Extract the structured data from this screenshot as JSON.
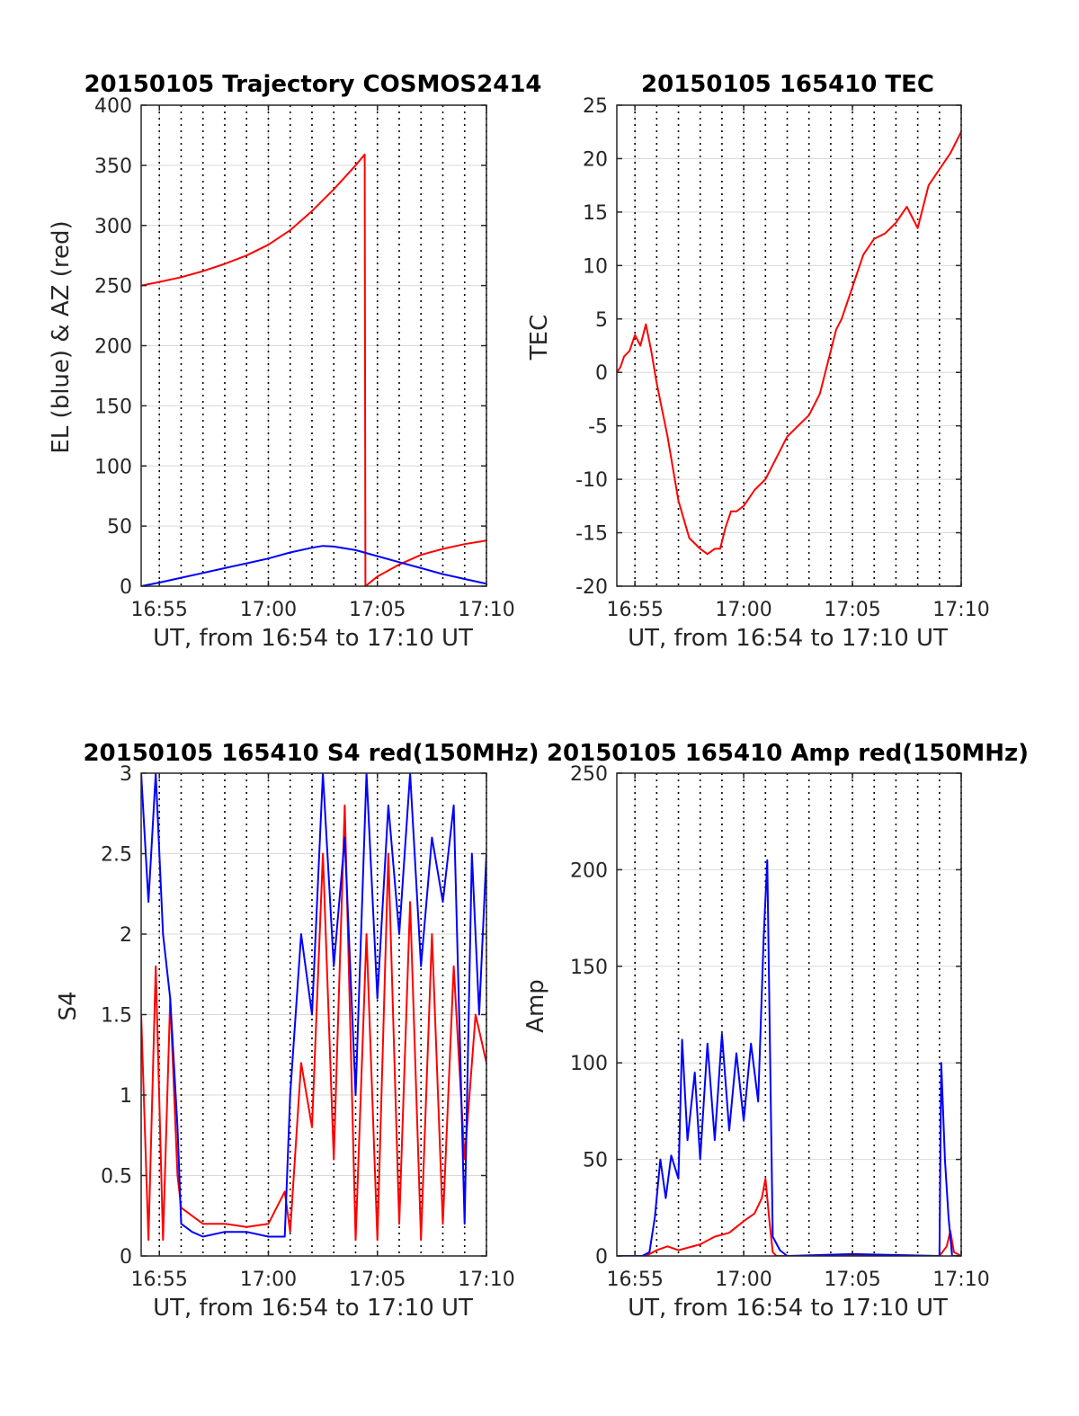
{
  "figure": {
    "date": "20150105",
    "time_window": "16:54 to 17:10 UT"
  },
  "colors": {
    "el": "#0000ff",
    "az": "#ff0000",
    "grid_major": "#d9d9d9",
    "grid_minute": "#000000",
    "axes": "#262626"
  },
  "chart_data": [
    {
      "type": "line",
      "title": "20150105 Trajectory COSMOS2414",
      "xlabel": "UT, from 16:54 to 17:10 UT",
      "ylabel": "EL (blue) & AZ (red)",
      "xlim": [
        "16:54:10",
        "17:10:00"
      ],
      "ylim": [
        0,
        400
      ],
      "yticks": [
        0,
        50,
        100,
        150,
        200,
        250,
        300,
        350,
        400
      ],
      "xticks": [
        "16:55",
        "17:00",
        "17:05",
        "17:10"
      ],
      "grid": true,
      "series": [
        {
          "color": "#ff0000",
          "x": [
            "16:54:10",
            "16:55:00",
            "16:56:00",
            "16:57:00",
            "16:58:00",
            "16:59:00",
            "17:00:00",
            "17:01:00",
            "17:02:00",
            "17:03:00",
            "17:04:00",
            "17:04:25",
            "17:04:27",
            "17:05:00",
            "17:06:00",
            "17:07:00",
            "17:08:00",
            "17:09:00",
            "17:10:00"
          ],
          "y": [
            250,
            253,
            257,
            262,
            268,
            275,
            284,
            296,
            312,
            330,
            350,
            359,
            0,
            8,
            18,
            26,
            31,
            35,
            38
          ]
        },
        {
          "color": "#0000ff",
          "x": [
            "16:54:10",
            "16:55:00",
            "16:56:00",
            "16:57:00",
            "16:58:00",
            "16:59:00",
            "17:00:00",
            "17:01:00",
            "17:02:00",
            "17:02:30",
            "17:03:00",
            "17:04:00",
            "17:05:00",
            "17:06:00",
            "17:07:00",
            "17:08:00",
            "17:09:00",
            "17:10:00"
          ],
          "y": [
            0,
            3,
            7,
            11,
            15,
            19,
            23,
            28,
            32,
            33.5,
            33,
            30,
            25,
            20,
            15,
            10,
            6,
            2
          ]
        }
      ]
    },
    {
      "type": "line",
      "title": "20150105 165410 TEC",
      "xlabel": "UT, from 16:54 to 17:10 UT",
      "ylabel": "TEC",
      "xlim": [
        "16:54:10",
        "17:10:00"
      ],
      "ylim": [
        -20,
        25
      ],
      "yticks": [
        -20,
        -15,
        -10,
        -5,
        0,
        5,
        10,
        15,
        20,
        25
      ],
      "xticks": [
        "16:55",
        "17:00",
        "17:05",
        "17:10"
      ],
      "grid": true,
      "series": [
        {
          "color": "#ff0000",
          "x": [
            "16:54:10",
            "16:54:20",
            "16:54:30",
            "16:54:45",
            "16:55:00",
            "16:55:15",
            "16:55:30",
            "16:55:45",
            "16:56:00",
            "16:56:30",
            "16:57:00",
            "16:57:30",
            "16:58:00",
            "16:58:20",
            "16:58:40",
            "16:58:55",
            "16:59:10",
            "16:59:25",
            "16:59:40",
            "17:00:00",
            "17:00:30",
            "17:01:00",
            "17:01:30",
            "17:02:00",
            "17:02:30",
            "17:03:00",
            "17:03:30",
            "17:04:00",
            "17:04:15",
            "17:04:30",
            "17:05:00",
            "17:05:30",
            "17:06:00",
            "17:06:30",
            "17:07:00",
            "17:07:30",
            "17:08:00",
            "17:08:30",
            "17:09:00",
            "17:09:30",
            "17:10:00"
          ],
          "y": [
            0,
            0.5,
            1.5,
            2,
            3.5,
            2.5,
            4.5,
            2,
            -1,
            -6,
            -12,
            -15.5,
            -16.5,
            -17,
            -16.5,
            -16.5,
            -14.5,
            -13,
            -13,
            -12.5,
            -11,
            -10,
            -8,
            -6,
            -5,
            -4,
            -2,
            2,
            4,
            5,
            8,
            11,
            12.5,
            13,
            14,
            15.5,
            13.5,
            17.5,
            19,
            20.5,
            22.5
          ]
        }
      ]
    },
    {
      "type": "line",
      "title": "20150105 165410 S4 red(150MHz)",
      "xlabel": "UT, from 16:54 to 17:10 UT",
      "ylabel": "S4",
      "xlim": [
        "16:54:10",
        "17:10:00"
      ],
      "ylim": [
        0,
        3
      ],
      "yticks": [
        0,
        0.5,
        1,
        1.5,
        2,
        2.5,
        3
      ],
      "xticks": [
        "16:55",
        "17:00",
        "17:05",
        "17:10"
      ],
      "grid": true,
      "series": [
        {
          "color": "#ff0000",
          "x": [
            "16:54:10",
            "16:54:30",
            "16:54:50",
            "16:55:10",
            "16:55:30",
            "16:55:50",
            "16:56:00",
            "16:56:30",
            "16:57:00",
            "16:58:00",
            "16:59:00",
            "17:00:00",
            "17:00:45",
            "17:01:00",
            "17:01:30",
            "17:02:00",
            "17:02:30",
            "17:03:00",
            "17:03:30",
            "17:04:00",
            "17:04:30",
            "17:05:00",
            "17:05:30",
            "17:06:00",
            "17:06:30",
            "17:07:00",
            "17:07:30",
            "17:08:00",
            "17:08:30",
            "17:09:00",
            "17:09:30",
            "17:10:00"
          ],
          "y": [
            1.5,
            0.1,
            1.8,
            0.1,
            1.6,
            0.5,
            0.3,
            0.25,
            0.2,
            0.2,
            0.18,
            0.2,
            0.4,
            0.15,
            1.2,
            0.8,
            2.5,
            0.6,
            2.8,
            0.1,
            2.0,
            0.1,
            2.5,
            0.2,
            2.2,
            0.1,
            2.0,
            0.2,
            1.8,
            0.6,
            1.5,
            1.2
          ]
        },
        {
          "color": "#0000ff",
          "x": [
            "16:54:10",
            "16:54:30",
            "16:54:50",
            "16:55:10",
            "16:55:30",
            "16:55:50",
            "16:56:00",
            "16:56:30",
            "16:57:00",
            "16:58:00",
            "16:59:00",
            "17:00:00",
            "17:00:45",
            "17:01:00",
            "17:01:30",
            "17:02:00",
            "17:02:30",
            "17:03:00",
            "17:03:30",
            "17:04:00",
            "17:04:30",
            "17:05:00",
            "17:05:30",
            "17:06:00",
            "17:06:30",
            "17:07:00",
            "17:07:30",
            "17:08:00",
            "17:08:30",
            "17:09:00",
            "17:09:20",
            "17:09:40",
            "17:10:00"
          ],
          "y": [
            3,
            2.2,
            3,
            2.0,
            1.6,
            0.8,
            0.2,
            0.15,
            0.12,
            0.15,
            0.15,
            0.12,
            0.12,
            1.0,
            2.0,
            1.5,
            3.0,
            1.8,
            2.6,
            1.0,
            3.0,
            1.6,
            2.8,
            2.0,
            3.0,
            1.8,
            2.6,
            2.2,
            2.8,
            0.2,
            2.5,
            1.5,
            2.5
          ]
        }
      ]
    },
    {
      "type": "line",
      "title": "20150105 165410 Amp red(150MHz)",
      "xlabel": "UT, from 16:54 to 17:10 UT",
      "ylabel": "Amp",
      "xlim": [
        "16:54:10",
        "17:10:00"
      ],
      "ylim": [
        0,
        250
      ],
      "yticks": [
        0,
        50,
        100,
        150,
        200,
        250
      ],
      "xticks": [
        "16:55",
        "17:00",
        "17:05",
        "17:10"
      ],
      "grid": true,
      "series": [
        {
          "color": "#ff0000",
          "x": [
            "16:54:10",
            "16:55:30",
            "16:56:00",
            "16:56:30",
            "16:57:00",
            "16:58:00",
            "16:58:40",
            "16:59:20",
            "17:00:00",
            "17:00:30",
            "17:00:50",
            "17:01:00",
            "17:01:10",
            "17:01:20",
            "17:01:30",
            "17:09:00",
            "17:09:20",
            "17:09:30",
            "17:09:40",
            "17:10:00"
          ],
          "y": [
            0,
            0,
            3,
            5,
            3,
            6,
            10,
            12,
            18,
            22,
            30,
            40,
            20,
            2,
            0,
            0,
            5,
            13,
            2,
            0
          ]
        },
        {
          "color": "#0000ff",
          "x": [
            "16:54:10",
            "16:55:20",
            "16:55:40",
            "16:55:55",
            "16:56:10",
            "16:56:25",
            "16:56:40",
            "16:57:00",
            "16:57:10",
            "16:57:25",
            "16:57:45",
            "16:58:00",
            "16:58:20",
            "16:58:40",
            "16:59:00",
            "16:59:20",
            "16:59:40",
            "17:00:00",
            "17:00:20",
            "17:00:40",
            "17:00:55",
            "17:01:05",
            "17:01:20",
            "17:01:40",
            "17:02:00",
            "17:05:00",
            "17:09:00",
            "17:09:05",
            "17:09:15",
            "17:09:25",
            "17:09:35",
            "17:10:00"
          ],
          "y": [
            0,
            0,
            2,
            20,
            50,
            30,
            52,
            40,
            112,
            60,
            95,
            50,
            110,
            60,
            115,
            65,
            105,
            70,
            110,
            80,
            165,
            205,
            10,
            3,
            0,
            1,
            0,
            100,
            50,
            20,
            0,
            0
          ]
        }
      ]
    }
  ]
}
